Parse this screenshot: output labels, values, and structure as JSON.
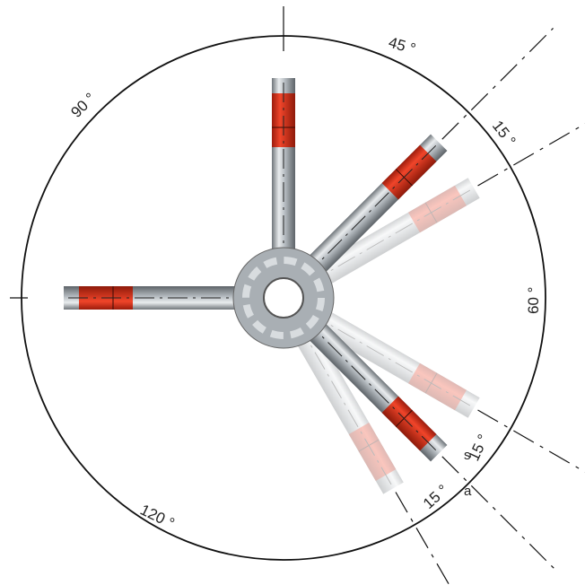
{
  "angle_labels": [
    "45 °",
    "15 °",
    "60 °",
    "15 °",
    "15 °",
    "120 °",
    "90 °"
  ],
  "side_text": [
    "s",
    "a"
  ]
}
